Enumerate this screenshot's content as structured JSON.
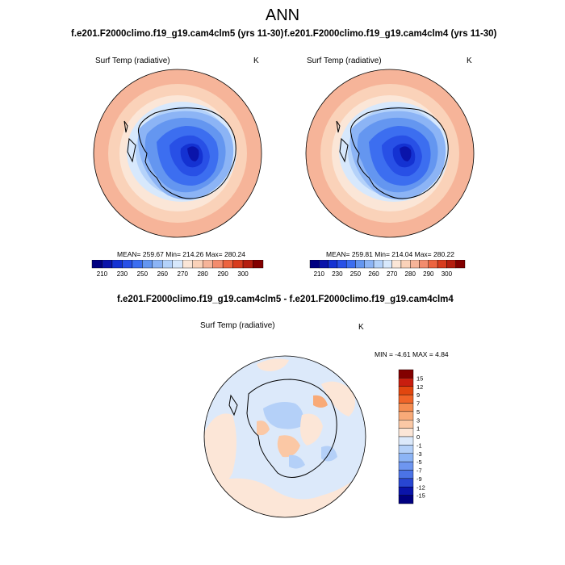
{
  "page": {
    "title": "ANN"
  },
  "panels": {
    "top_left": {
      "case_title": "f.e201.F2000climo.f19_g19.cam4clm5 (yrs 11-30)",
      "variable": "Surf Temp (radiative)",
      "units": "K",
      "stats_text": "MEAN= 259.67  Min= 214.26  Max= 280.24",
      "stats": {
        "mean": 259.67,
        "min": 214.26,
        "max": 280.24
      }
    },
    "top_right": {
      "case_title": "f.e201.F2000climo.f19_g19.cam4clm4 (yrs 11-30)",
      "variable": "Surf Temp (radiative)",
      "units": "K",
      "stats_text": "MEAN= 259.81  Min= 214.04  Max= 280.22",
      "stats": {
        "mean": 259.81,
        "min": 214.04,
        "max": 280.22
      }
    },
    "bottom": {
      "diff_title": "f.e201.F2000climo.f19_g19.cam4clm5 - f.e201.F2000climo.f19_g19.cam4clm4",
      "variable": "Surf Temp (radiative)",
      "units": "K",
      "stats_text": "MIN =  -4.61 MAX =   4.84",
      "stats": {
        "min": -4.61,
        "max": 4.84
      }
    }
  },
  "colorbar_abs": {
    "labels": [
      "210",
      "230",
      "250",
      "260",
      "270",
      "280",
      "290",
      "300"
    ],
    "colors": [
      "#000080",
      "#0a14aa",
      "#1432d2",
      "#2850e6",
      "#3c6ef0",
      "#6496f0",
      "#8cb4f5",
      "#b4d2fa",
      "#d7e8fc",
      "#fbe6d7",
      "#fad2b9",
      "#f6b499",
      "#f28c6e",
      "#ec6440",
      "#d73c1e",
      "#b41e0f",
      "#820000"
    ]
  },
  "colorbar_diff": {
    "labels": [
      "15",
      "12",
      "9",
      "7",
      "5",
      "3",
      "1",
      "0",
      "-1",
      "-3",
      "-5",
      "-7",
      "-9",
      "-12",
      "-15"
    ],
    "colors": [
      "#820000",
      "#c81e0f",
      "#e1460f",
      "#f06428",
      "#f58c50",
      "#f8aa78",
      "#fbc8a5",
      "#fce6d7",
      "#dce9fa",
      "#b4d0f8",
      "#8cb4f5",
      "#6e96f0",
      "#4b73e6",
      "#2846d2",
      "#0a14aa",
      "#000080"
    ]
  },
  "chart_data": {
    "type": "heatmap",
    "title": "ANN",
    "maps": [
      {
        "panel": "cam4clm5 (yrs 11-30)",
        "field": "Surf Temp (radiative)",
        "units": "K",
        "mean": 259.67,
        "min": 214.26,
        "max": 280.24,
        "levels": [
          210,
          230,
          250,
          260,
          270,
          280,
          290,
          300
        ]
      },
      {
        "panel": "cam4clm4 (yrs 11-30)",
        "field": "Surf Temp (radiative)",
        "units": "K",
        "mean": 259.81,
        "min": 214.04,
        "max": 280.22,
        "levels": [
          210,
          230,
          250,
          260,
          270,
          280,
          290,
          300
        ]
      },
      {
        "panel": "cam4clm5 - cam4clm4",
        "field": "Surf Temp (radiative)",
        "units": "K",
        "min": -4.61,
        "max": 4.84,
        "levels": [
          15,
          12,
          9,
          7,
          5,
          3,
          1,
          0,
          -1,
          -3,
          -5,
          -7,
          -9,
          -12,
          -15
        ]
      }
    ]
  }
}
